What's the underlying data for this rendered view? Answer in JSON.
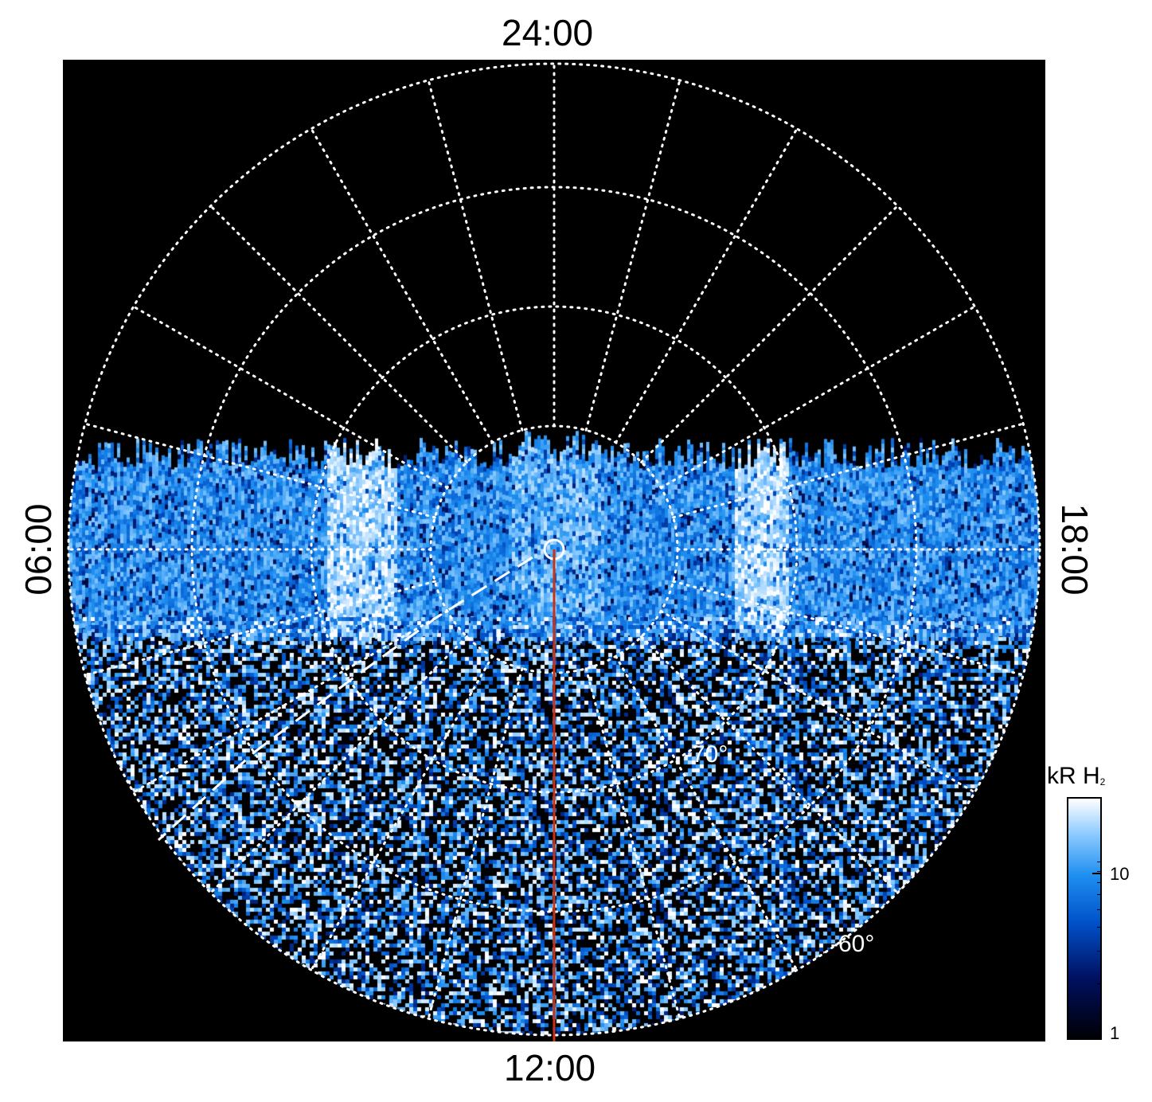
{
  "labels": {
    "top": "24:00",
    "bottom": "12:00",
    "left": "06:00",
    "right": "18:00",
    "lat_70": "-70°",
    "lat_60": "-60°"
  },
  "colorbar": {
    "title": "kR H",
    "title_sub": "2",
    "ticks": [
      "10",
      "1"
    ],
    "scale": "log",
    "colors": [
      "#000005",
      "#001060",
      "#0050c8",
      "#1e8ff0",
      "#8ccaff",
      "#ffffff"
    ]
  },
  "colors": {
    "background": "#000000",
    "grid": "#ffffff",
    "meridian_line": "#c83214"
  }
}
